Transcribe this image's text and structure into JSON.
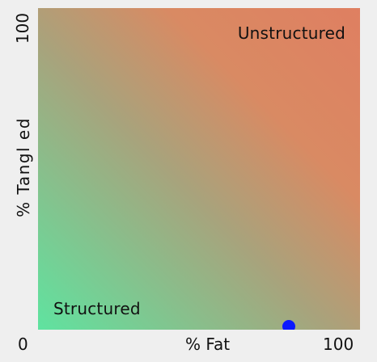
{
  "chart_data": {
    "type": "scatter",
    "xlabel": "% Fat",
    "ylabel": "% Tangl ed",
    "xlim": [
      0,
      100
    ],
    "ylim": [
      0,
      100
    ],
    "x_ticks": [
      "0",
      "100"
    ],
    "y_ticks": [
      "100"
    ],
    "grid": false,
    "background": {
      "type": "diagonal-gradient",
      "low_color": "#5fe3a0",
      "mid_color": "#a8a37c",
      "high_color": "#df7f61"
    },
    "annotations": {
      "unstructured": "Unstructured",
      "structured": "Structured"
    },
    "points": [
      {
        "x": 78,
        "y": 1,
        "color": "#0b18ff"
      }
    ]
  }
}
